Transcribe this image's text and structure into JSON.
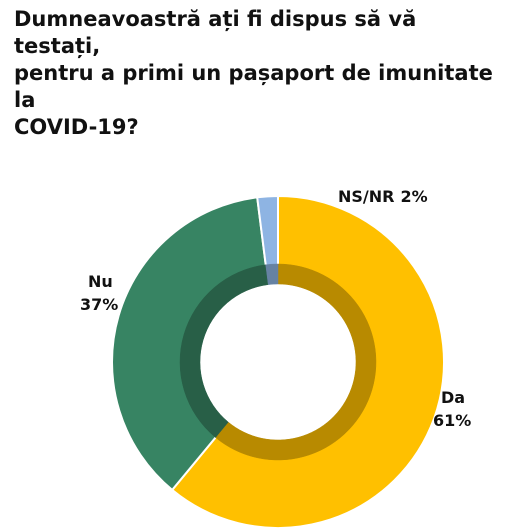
{
  "chart_data": {
    "type": "pie",
    "title_lines": [
      "Dumneavoastră ați fi dispus să vă testați,",
      "pentru a primi un pașaport de imunitate la",
      "COVID-19?"
    ],
    "slices": [
      {
        "label": "Da",
        "value": 61,
        "value_label": "61%",
        "color": "#FFC000"
      },
      {
        "label": "Nu",
        "value": 37,
        "value_label": "37%",
        "color": "#378463"
      },
      {
        "label": "NS/NR",
        "value": 2,
        "value_label": "2%",
        "color": "#8EB4E3"
      }
    ],
    "donut": true,
    "legend": "none"
  }
}
